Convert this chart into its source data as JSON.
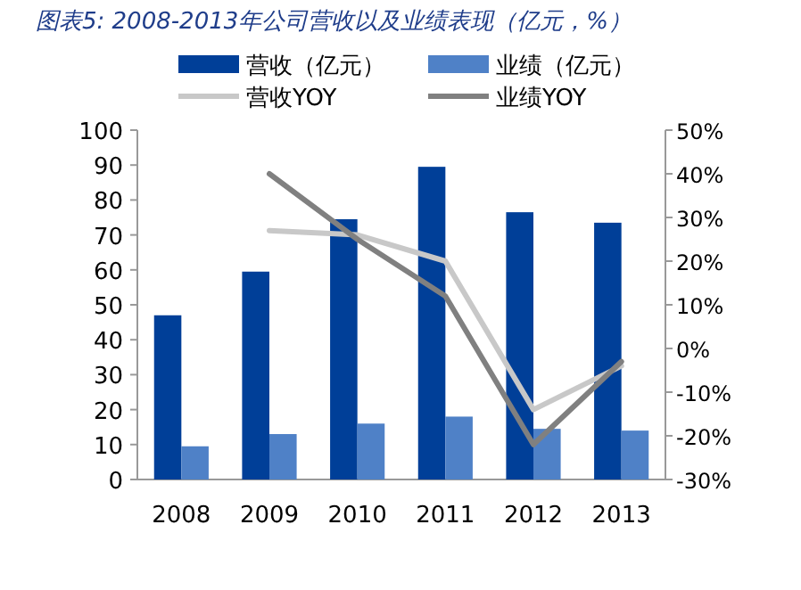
{
  "chart_data": {
    "type": "bar",
    "title": "图表5: 2008-2013年公司营收以及业绩表现（亿元，%）",
    "categories": [
      "2008",
      "2009",
      "2010",
      "2011",
      "2012",
      "2013"
    ],
    "series": [
      {
        "name": "营收（亿元）",
        "color": "#003f98",
        "values": [
          47,
          59.5,
          74.5,
          89.5,
          76.5,
          73.5
        ]
      },
      {
        "name": "业绩（亿元）",
        "color": "#4f81c7",
        "values": [
          9.5,
          13,
          16,
          18,
          14.5,
          14
        ]
      },
      {
        "name": "营收YOY",
        "type": "line",
        "axis": "y2",
        "color": "#c8c8c8",
        "values": [
          null,
          27,
          26,
          20,
          -14,
          -4
        ]
      },
      {
        "name": "业绩YOY",
        "type": "line",
        "axis": "y2",
        "color": "#808080",
        "values": [
          null,
          40,
          25,
          12,
          -22,
          -3
        ]
      }
    ],
    "ylim": [
      0,
      100
    ],
    "yticks": [
      0,
      10,
      20,
      30,
      40,
      50,
      60,
      70,
      80,
      90,
      100
    ],
    "y2lim": [
      -30,
      50
    ],
    "y2ticks": [
      {
        "value": -30,
        "label": "-30%"
      },
      {
        "value": -20,
        "label": "-20%"
      },
      {
        "value": -10,
        "label": "-10%"
      },
      {
        "value": 0,
        "label": "0%"
      },
      {
        "value": 10,
        "label": "10%"
      },
      {
        "value": 20,
        "label": "20%"
      },
      {
        "value": 30,
        "label": "30%"
      },
      {
        "value": 40,
        "label": "40%"
      },
      {
        "value": 50,
        "label": "50%"
      }
    ],
    "legend": "top",
    "grid": false
  }
}
